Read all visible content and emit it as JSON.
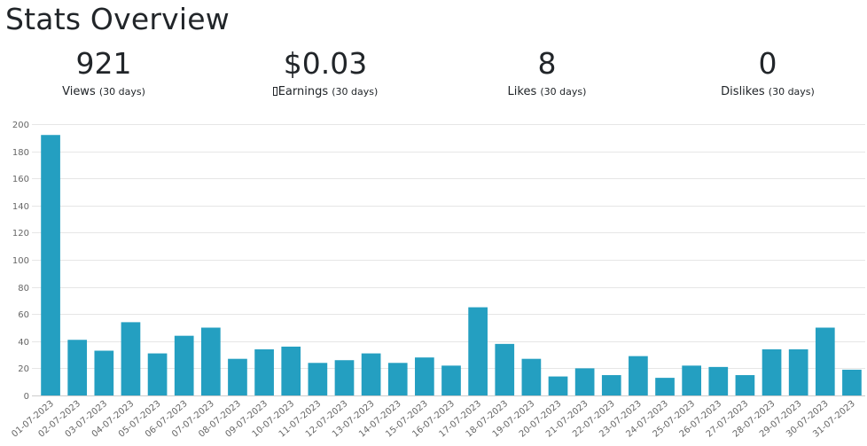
{
  "page": {
    "title": "Stats Overview"
  },
  "stats": {
    "views": {
      "value": "921",
      "label": "Views",
      "period": "(30 days)"
    },
    "earnings": {
      "value": "$0.03",
      "label": "Earnings",
      "period": "(30 days)"
    },
    "likes": {
      "value": "8",
      "label": "Likes",
      "period": "(30 days)"
    },
    "dislikes": {
      "value": "0",
      "label": "Dislikes",
      "period": "(30 days)"
    }
  },
  "colors": {
    "bar": "#249fc1",
    "grid": "#e6e6e6",
    "text": "#212529"
  },
  "chart_data": {
    "type": "bar",
    "title": "",
    "xlabel": "",
    "ylabel": "",
    "ylim": [
      0,
      200
    ],
    "yticks": [
      0,
      20,
      40,
      60,
      80,
      100,
      120,
      140,
      160,
      180,
      200
    ],
    "grid": true,
    "legend": "none",
    "categories": [
      "01-07-2023",
      "02-07-2023",
      "03-07-2023",
      "04-07-2023",
      "05-07-2023",
      "06-07-2023",
      "07-07-2023",
      "08-07-2023",
      "09-07-2023",
      "10-07-2023",
      "11-07-2023",
      "12-07-2023",
      "13-07-2023",
      "14-07-2023",
      "15-07-2023",
      "16-07-2023",
      "17-07-2023",
      "18-07-2023",
      "19-07-2023",
      "20-07-2023",
      "21-07-2023",
      "22-07-2023",
      "23-07-2023",
      "24-07-2023",
      "25-07-2023",
      "26-07-2023",
      "27-07-2023",
      "28-07-2023",
      "29-07-2023",
      "30-07-2023",
      "31-07-2023"
    ],
    "values": [
      192,
      41,
      33,
      54,
      31,
      44,
      50,
      27,
      34,
      36,
      24,
      26,
      31,
      24,
      28,
      22,
      65,
      38,
      27,
      14,
      20,
      15,
      29,
      13,
      22,
      21,
      15,
      34,
      34,
      50,
      19
    ]
  }
}
